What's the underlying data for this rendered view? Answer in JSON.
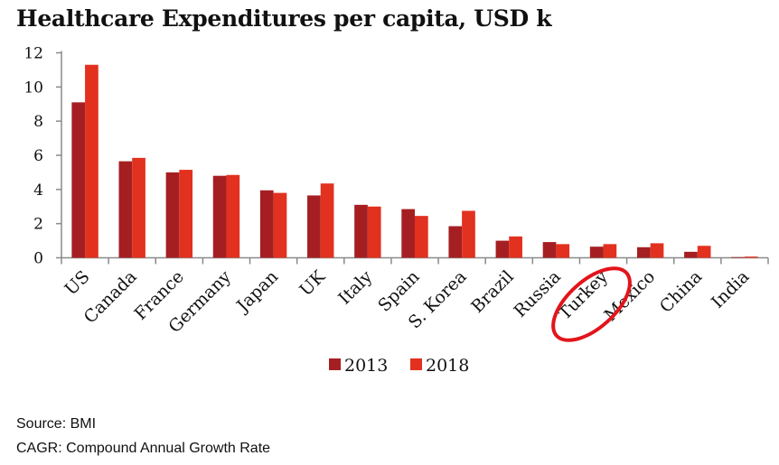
{
  "chart_data": {
    "type": "bar",
    "title": "Healthcare Expenditures per capita, USD k",
    "xlabel": "",
    "ylabel": "",
    "ylim": [
      0,
      12
    ],
    "yticks": [
      0,
      2,
      4,
      6,
      8,
      10,
      12
    ],
    "grid": false,
    "legend_position": "bottom-center",
    "categories": [
      "US",
      "Canada",
      "France",
      "Germany",
      "Japan",
      "UK",
      "Italy",
      "Spain",
      "S. Korea",
      "Brazil",
      "Russia",
      "Turkey",
      "Mexico",
      "China",
      "India"
    ],
    "series": [
      {
        "name": "2013",
        "color": "#A51F22",
        "values": [
          9.1,
          5.65,
          5.0,
          4.8,
          3.95,
          3.65,
          3.1,
          2.85,
          1.85,
          1.0,
          0.92,
          0.65,
          0.62,
          0.35,
          0.04
        ]
      },
      {
        "name": "2018",
        "color": "#E2311F",
        "values": [
          11.3,
          5.85,
          5.15,
          4.85,
          3.8,
          4.35,
          3.0,
          2.45,
          2.75,
          1.25,
          0.8,
          0.8,
          0.85,
          0.7,
          0.07
        ]
      }
    ],
    "annotations": [
      {
        "type": "circle",
        "target": "Turkey",
        "color": "#E3141B"
      }
    ]
  },
  "footer": {
    "source": "Source: BMI",
    "note": "CAGR: Compound Annual Growth Rate"
  }
}
